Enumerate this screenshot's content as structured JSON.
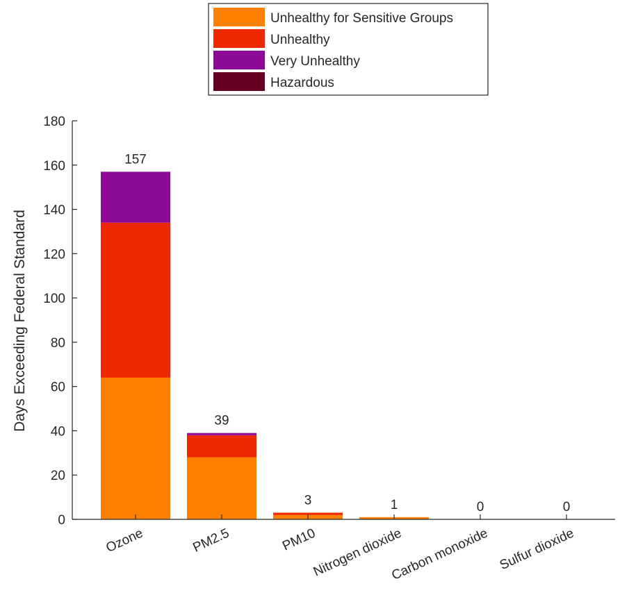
{
  "chart_data": {
    "type": "bar",
    "stacked": true,
    "categories": [
      "Ozone",
      "PM2.5",
      "PM10",
      "Nitrogen dioxide",
      "Carbon monoxide",
      "Sulfur dioxide"
    ],
    "series": [
      {
        "name": "Unhealthy for Sensitive Groups",
        "color": "#ff8000",
        "values": [
          64,
          28,
          2,
          1,
          0,
          0
        ]
      },
      {
        "name": "Unhealthy",
        "color": "#f02800",
        "values": [
          70,
          10,
          1,
          0,
          0,
          0
        ]
      },
      {
        "name": "Very Unhealthy",
        "color": "#8b0a96",
        "values": [
          23,
          1,
          0,
          0,
          0,
          0
        ]
      },
      {
        "name": "Hazardous",
        "color": "#660020",
        "values": [
          0,
          0,
          0,
          0,
          0,
          0
        ]
      }
    ],
    "totals": [
      "157",
      "39",
      "3",
      "1",
      "0",
      "0"
    ],
    "title": "",
    "xlabel": "",
    "ylabel": "Days Exceeding Federal Standard",
    "ylim": [
      0,
      180
    ],
    "yticks": [
      "0",
      "20",
      "40",
      "60",
      "80",
      "100",
      "120",
      "140",
      "160",
      "180"
    ],
    "grid": false,
    "legend_position": "top-center",
    "xtick_rotation_deg": 25
  }
}
